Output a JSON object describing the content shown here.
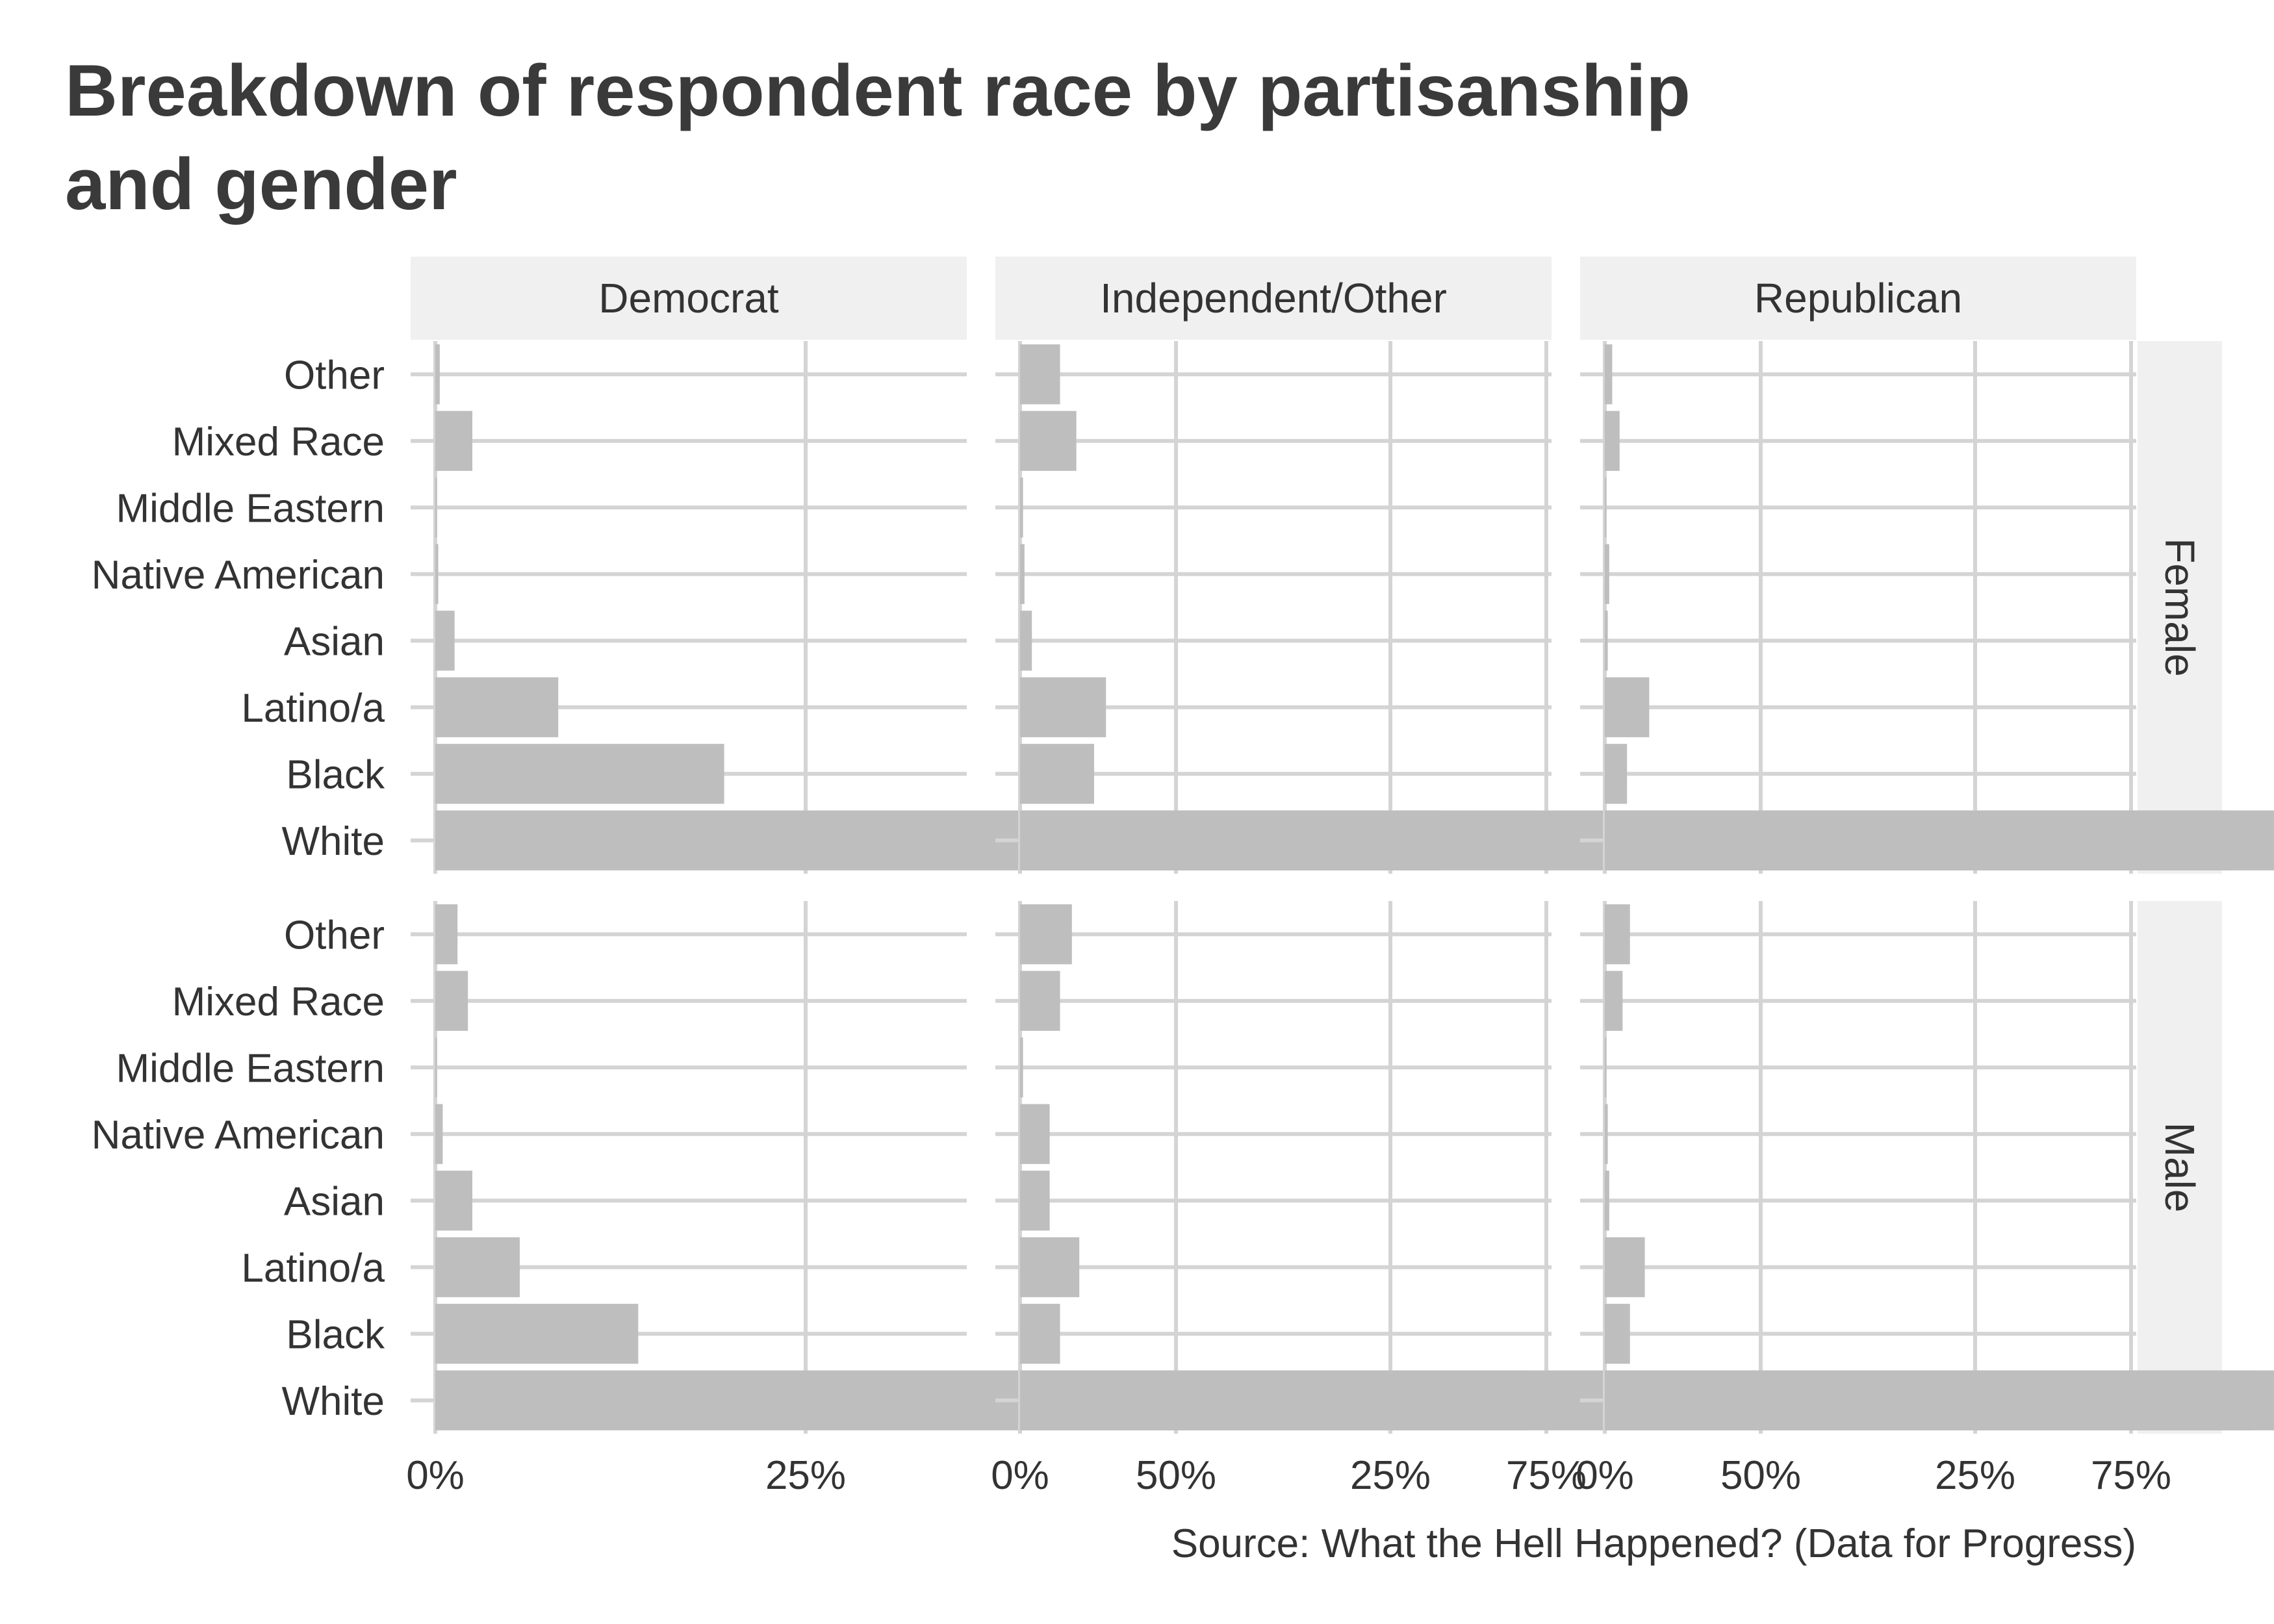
{
  "chart_data": {
    "type": "bar",
    "orientation": "horizontal",
    "title": "Breakdown of respondent race by partisanship and gender",
    "caption": "Source: What the Hell Happened? (Data for Progress)",
    "columns": [
      "Democrat",
      "Independent/Other",
      "Republican"
    ],
    "rows": [
      "Female",
      "Male"
    ],
    "categories": [
      "Other",
      "Mixed Race",
      "Middle Eastern",
      "Native American",
      "Asian",
      "Latino/a",
      "Black",
      "White"
    ],
    "x_ticks": [
      "0%",
      "25%",
      "50%",
      "75%"
    ],
    "x_tick_values": [
      0,
      0.25,
      0.5,
      0.75
    ],
    "xlim": [
      0,
      0.96
    ],
    "grid": true,
    "bar_color": "#bebebe",
    "facets": [
      {
        "row": "Female",
        "column": "Democrat",
        "values": [
          0.003,
          0.025,
          0.001,
          0.002,
          0.013,
          0.083,
          0.195,
          0.678
        ]
      },
      {
        "row": "Female",
        "column": "Independent/Other",
        "values": [
          0.027,
          0.038,
          0.002,
          0.003,
          0.008,
          0.058,
          0.05,
          0.817
        ]
      },
      {
        "row": "Female",
        "column": "Republican",
        "values": [
          0.005,
          0.01,
          0.001,
          0.003,
          0.002,
          0.03,
          0.015,
          0.924
        ]
      },
      {
        "row": "Male",
        "column": "Democrat",
        "values": [
          0.015,
          0.022,
          0.001,
          0.005,
          0.025,
          0.057,
          0.137,
          0.738
        ]
      },
      {
        "row": "Male",
        "column": "Independent/Other",
        "values": [
          0.035,
          0.027,
          0.002,
          0.02,
          0.02,
          0.04,
          0.027,
          0.832
        ]
      },
      {
        "row": "Male",
        "column": "Republican",
        "values": [
          0.017,
          0.012,
          0.001,
          0.002,
          0.003,
          0.027,
          0.017,
          0.921
        ]
      }
    ]
  }
}
